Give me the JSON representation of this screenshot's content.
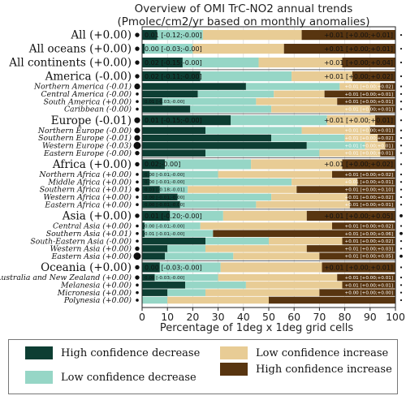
{
  "chart_data": {
    "type": "bar",
    "orientation": "horizontal",
    "stacked": true,
    "title_line1": "Overview of OMI TrC-NO2 annual trends",
    "title_line2": "(Pmolec/cm2/yr based on monthly anomalies)",
    "xlabel": "Percentage of 1deg x 1deg grid cells",
    "xlim": [
      0,
      100
    ],
    "x_ticks": [
      "0",
      "10",
      "20",
      "30",
      "40",
      "50",
      "60",
      "70",
      "80",
      "90",
      "100"
    ],
    "colors": {
      "high_decrease": "#0d3e33",
      "low_decrease": "#96d6c6",
      "low_increase": "#e8cc95",
      "high_increase": "#583510"
    },
    "legend": [
      {
        "key": "high_decrease",
        "label": "High confidence decrease"
      },
      {
        "key": "low_decrease",
        "label": "Low confidence decrease"
      },
      {
        "key": "low_increase",
        "label": "Low confidence increase"
      },
      {
        "key": "high_increase",
        "label": "High confidence increase"
      }
    ],
    "rows": [
      {
        "label": "All (+0.00)",
        "major": true,
        "values": [
          6,
          18,
          39,
          37
        ],
        "dec": "0.01 [-0.12;-0.00]",
        "inc": "+0.01 [+0.00;+0.01]",
        "dot": 3,
        "rdot": 1
      },
      {
        "label": "All oceans (+0.00)",
        "major": true,
        "values": [
          1,
          19,
          36,
          44
        ],
        "dec": "0.00 [-0.03;-0.00]",
        "inc": "+0.01 [+0.00;+0.01]",
        "dot": 3,
        "rdot": 1
      },
      {
        "label": "All continents (+0.00)",
        "major": true,
        "values": [
          16,
          30,
          33,
          21
        ],
        "dec": "0.02 [-0.15;-0.00]",
        "inc": "+0.01 [+0.00;+0.04]",
        "dot": 3,
        "rdot": 1
      },
      {
        "label": "America (-0.00)",
        "major": true,
        "values": [
          23,
          36,
          24,
          17
        ],
        "dec": "0.02 [-0.11;-0.00]",
        "inc": "+0.01 [+0.00;+0.02]",
        "dot": 3,
        "rdot": 1
      },
      {
        "label": "Northern America (-0.01)",
        "major": false,
        "values": [
          41,
          37,
          16,
          6
        ],
        "dec": "",
        "inc": "+0.01 [+0.00;+0.02]",
        "dot": 4,
        "rdot": 1
      },
      {
        "label": "Central America (-0.00)",
        "major": false,
        "values": [
          22,
          30,
          20,
          28
        ],
        "dec": "",
        "inc": "+0.01 [+0.00;+0.01]",
        "dot": 2,
        "rdot": 1
      },
      {
        "label": "South America (+0.00)",
        "major": false,
        "values": [
          8,
          37,
          32,
          23
        ],
        "dec": "0.01 [-0.03;-0.00]",
        "inc": "+0.01 [+0.00;+0.01]",
        "dot": 2,
        "rdot": 1
      },
      {
        "label": "Caribbean (-0.00)",
        "major": false,
        "values": [
          19,
          32,
          39,
          10
        ],
        "dec": "",
        "inc": "+0.01 [+0.00;+0.01]",
        "dot": 2,
        "rdot": 1
      },
      {
        "label": "Europe (-0.01)",
        "major": true,
        "values": [
          35,
          38,
          19,
          8
        ],
        "dec": "0.01 [-0.15;-0.00]",
        "inc": "+0.01 [+0.00;+0.01]",
        "dot": 4,
        "rdot": 1
      },
      {
        "label": "Northern Europe (-0.00)",
        "major": false,
        "values": [
          25,
          38,
          27,
          10
        ],
        "dec": "",
        "inc": "+0.01 [+0.00;+0.01]",
        "dot": 4,
        "rdot": 1
      },
      {
        "label": "Southern Europe (-0.01)",
        "major": false,
        "values": [
          51,
          29,
          13,
          7
        ],
        "dec": "",
        "inc": "+0.01 [+0.00;+0.02]",
        "dot": 4,
        "rdot": 1
      },
      {
        "label": "Western Europe (-0.03)",
        "major": false,
        "values": [
          65,
          23,
          8,
          4
        ],
        "dec": "",
        "inc": "+0.01 [+0.00;+0.01]",
        "dot": 5,
        "rdot": 1
      },
      {
        "label": "Eastern Europe (-0.00)",
        "major": false,
        "values": [
          25,
          45,
          24,
          6
        ],
        "dec": "",
        "inc": "+0.01 [+0.00;+0.01]",
        "dot": 3,
        "rdot": 1
      },
      {
        "label": "Africa (+0.00)",
        "major": true,
        "values": [
          9,
          34,
          36,
          21
        ],
        "dec": "0.02;-0.00]",
        "inc": "+0.01 [+0.00;+0.02]",
        "dot": 3,
        "rdot": 1
      },
      {
        "label": "Northern Africa (+0.00)",
        "major": false,
        "values": [
          3,
          27,
          45,
          25
        ],
        "dec": "0.00 [-0.01;-0.00]",
        "inc": "+0.01 [+0.00;+0.02]",
        "dot": 2,
        "rdot": 1
      },
      {
        "label": "Middle Africa (+0.00)",
        "major": false,
        "values": [
          3,
          56,
          26,
          15
        ],
        "dec": "0.00 [-0.01;-0.00]",
        "inc": "+0.01 [+0.00;+0.01]",
        "dot": 2,
        "rdot": 1
      },
      {
        "label": "Southern Africa (+0.01)",
        "major": false,
        "values": [
          7,
          11,
          43,
          39
        ],
        "dec": "0.03 [-0.18;-0.01]",
        "inc": "+0.01 [+0.00;+0.10]",
        "dot": 3,
        "rdot": 1
      },
      {
        "label": "Western Africa (+0.00)",
        "major": false,
        "values": [
          14,
          37,
          30,
          19
        ],
        "dec": "0.00 [-0.01;-0.00]",
        "inc": "+0.01 [+0.00;+0.02]",
        "dot": 2,
        "rdot": 1
      },
      {
        "label": "Eastern Africa (+0.00)",
        "major": false,
        "values": [
          15,
          30,
          37,
          18
        ],
        "dec": "0.00 [-0.01;-0.00]",
        "inc": "+0.01 [+0.00;+0.01]",
        "dot": 2,
        "rdot": 1
      },
      {
        "label": "Asia (+0.00)",
        "major": true,
        "values": [
          11,
          21,
          33,
          35
        ],
        "dec": "0.01 [-0.20;-0.00]",
        "inc": "+0.01 [+0.00;+0.05]",
        "dot": 3,
        "rdot": 2
      },
      {
        "label": "Central Asia (+0.00)",
        "major": false,
        "values": [
          1,
          22,
          52,
          25
        ],
        "dec": "0.00 [-0.01;-0.00]",
        "inc": "+0.01 [+0.00;+0.02]",
        "dot": 2,
        "rdot": 1
      },
      {
        "label": "Southern Asia (+0.01)",
        "major": false,
        "values": [
          1,
          27,
          0,
          72
        ],
        "dec": "0.01 [-0.01;-0.00]",
        "inc": "+0.01 [+0.00;+0.06]",
        "dot": 2,
        "rdot": 2
      },
      {
        "label": "South-Eastern Asia (-0.00)",
        "major": false,
        "values": [
          25,
          25,
          29,
          21
        ],
        "dec": "",
        "inc": "+0.01 [+0.00;+0.02]",
        "dot": 2,
        "rdot": 1
      },
      {
        "label": "Western Asia (+0.00)",
        "major": false,
        "values": [
          10,
          15,
          40,
          35
        ],
        "dec": "",
        "inc": "+0.01 [+0.00;+0.03]",
        "dot": 3,
        "rdot": 1
      },
      {
        "label": "Eastern Asia (+0.00)",
        "major": false,
        "values": [
          9,
          27,
          34,
          30
        ],
        "dec": "",
        "inc": "+0.01 [+0.00;+0.05]",
        "dot": 5,
        "rdot": 2
      },
      {
        "label": "Oceania (+0.00)",
        "major": true,
        "values": [
          7,
          24,
          40,
          29
        ],
        "dec": "0.00 [-0.03;-0.00]",
        "inc": "+0.01 [+0.00;+0.01]",
        "dot": 3,
        "rdot": 1
      },
      {
        "label": "Australia and New Zealand (+0.00)",
        "major": false,
        "values": [
          5,
          25,
          47,
          23
        ],
        "dec": "0.00 [-0.03;-0.00]",
        "inc": "+0.01 [+0.00;+0.01]",
        "dot": 3,
        "rdot": 1
      },
      {
        "label": "Melanesia (+0.00)",
        "major": false,
        "values": [
          17,
          24,
          38,
          21
        ],
        "dec": "",
        "inc": "+0.01 [+0.00;+0.01]",
        "dot": 2,
        "rdot": 1
      },
      {
        "label": "Micronesia (+0.00)",
        "major": false,
        "values": [
          10,
          15,
          45,
          30
        ],
        "dec": "",
        "inc": "+0.00 [+0.00;+0.00]",
        "dot": 2,
        "rdot": 1
      },
      {
        "label": "Polynesia (+0.00)",
        "major": false,
        "values": [
          0,
          10,
          40,
          50
        ],
        "dec": "",
        "inc": "",
        "dot": 2,
        "rdot": 1
      }
    ]
  }
}
